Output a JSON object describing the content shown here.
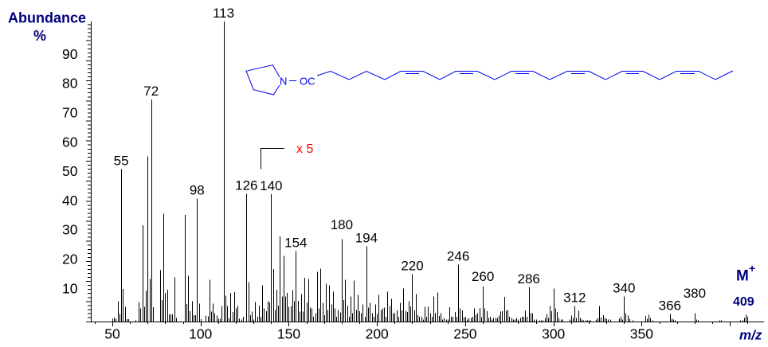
{
  "axis_titles": {
    "y_line1": "Abundance",
    "y_line2": "%",
    "x": "m/z"
  },
  "molecular_ion": {
    "label": "M",
    "charge": "+",
    "mz": "409"
  },
  "scale_annotation": {
    "text": "x 5",
    "starts_at_mz": 134,
    "factor": 5
  },
  "structure": {
    "ring_atom": "N",
    "linker_group": "OC",
    "description": "pyrrolidide of a C24 fatty acid with six cis double bonds",
    "double_bonds": 6
  },
  "colors": {
    "axis_title": "#000080",
    "peaks": "#000000",
    "structure": "#0000ee",
    "scale_annotation": "#ff0000",
    "background": "#ffffff"
  },
  "chart_data": {
    "type": "bar",
    "title": "",
    "xlabel": "m/z",
    "ylabel": "Abundance %",
    "xlim": [
      40,
      415
    ],
    "ylim": [
      0,
      100
    ],
    "xticks": [
      50,
      100,
      150,
      200,
      250,
      300,
      350
    ],
    "x_minor_tick_step": 10,
    "yticks": [
      10,
      20,
      30,
      40,
      50,
      60,
      70,
      80,
      90
    ],
    "grid": false,
    "legend": null,
    "magnification_note": "peaks above m/z ~134 shown at x5",
    "peaks": [
      [
        50,
        0.8
      ],
      [
        51,
        1.2
      ],
      [
        52,
        0.8
      ],
      [
        53,
        6.7
      ],
      [
        54,
        2.4
      ],
      [
        55,
        50.7
      ],
      [
        56,
        10.8
      ],
      [
        57,
        4.8
      ],
      [
        58,
        0.6
      ],
      [
        59,
        0.6
      ],
      [
        63,
        0.3
      ],
      [
        65,
        6.4
      ],
      [
        66,
        4.3
      ],
      [
        67,
        32.0
      ],
      [
        68,
        4.8
      ],
      [
        69,
        10.1
      ],
      [
        70,
        55.0
      ],
      [
        71,
        14.1
      ],
      [
        72,
        74.0
      ],
      [
        73,
        4.6
      ],
      [
        77,
        17.0
      ],
      [
        78,
        7.0
      ],
      [
        79,
        35.8
      ],
      [
        80,
        9.4
      ],
      [
        81,
        10.5
      ],
      [
        82,
        2.2
      ],
      [
        83,
        2.2
      ],
      [
        84,
        2.2
      ],
      [
        85,
        14.6
      ],
      [
        86,
        1.0
      ],
      [
        91,
        35.4
      ],
      [
        92,
        5.7
      ],
      [
        93,
        15.2
      ],
      [
        94,
        3.3
      ],
      [
        95,
        6.7
      ],
      [
        96,
        2.0
      ],
      [
        97,
        2.0
      ],
      [
        98,
        40.9
      ],
      [
        99,
        5.9
      ],
      [
        100,
        0.6
      ],
      [
        103,
        1.8
      ],
      [
        104,
        1.6
      ],
      [
        105,
        13.8
      ],
      [
        106,
        3.2
      ],
      [
        107,
        5.9
      ],
      [
        108,
        2.6
      ],
      [
        109,
        1.8
      ],
      [
        110,
        0.8
      ],
      [
        111,
        0.8
      ],
      [
        112,
        5.0
      ],
      [
        113,
        100
      ],
      [
        114,
        8.5
      ],
      [
        115,
        5.0
      ],
      [
        116,
        1.0
      ],
      [
        117,
        9.4
      ],
      [
        118,
        3.0
      ],
      [
        119,
        9.7
      ],
      [
        120,
        4.3
      ],
      [
        121,
        5.0
      ],
      [
        122,
        0.8
      ],
      [
        123,
        0.5
      ],
      [
        124,
        1.5
      ],
      [
        126,
        42.5
      ],
      [
        127,
        13.0
      ],
      [
        128,
        2.0
      ],
      [
        129,
        3.2
      ],
      [
        130,
        0.5
      ],
      [
        131,
        6.4
      ],
      [
        132,
        1.5
      ],
      [
        133,
        5.2
      ],
      [
        134,
        1.5
      ],
      [
        135,
        12.0
      ],
      [
        136,
        4.3
      ],
      [
        137,
        3.3
      ],
      [
        138,
        6.6
      ],
      [
        139,
        6.3
      ],
      [
        140,
        42.3
      ],
      [
        141,
        17.4
      ],
      [
        142,
        3.7
      ],
      [
        143,
        10.5
      ],
      [
        144,
        5.2
      ],
      [
        145,
        28.3
      ],
      [
        146,
        8.2
      ],
      [
        147,
        21.8
      ],
      [
        148,
        8.3
      ],
      [
        149,
        9.4
      ],
      [
        150,
        4.8
      ],
      [
        151,
        5.0
      ],
      [
        152,
        10.3
      ],
      [
        153,
        6.7
      ],
      [
        154,
        23.4
      ],
      [
        155,
        6.8
      ],
      [
        156,
        3.2
      ],
      [
        157,
        9.0
      ],
      [
        158,
        3.2
      ],
      [
        159,
        14.5
      ],
      [
        160,
        6.1
      ],
      [
        161,
        14.1
      ],
      [
        162,
        4.5
      ],
      [
        163,
        4.2
      ],
      [
        164,
        1.5
      ],
      [
        165,
        2.6
      ],
      [
        166,
        16.5
      ],
      [
        167,
        4.3
      ],
      [
        168,
        17.5
      ],
      [
        169,
        6.1
      ],
      [
        170,
        2.0
      ],
      [
        171,
        12.5
      ],
      [
        172,
        3.7
      ],
      [
        173,
        11.9
      ],
      [
        174,
        5.6
      ],
      [
        175,
        9.8
      ],
      [
        176,
        4.3
      ],
      [
        177,
        1.5
      ],
      [
        178,
        3.7
      ],
      [
        179,
        2.9
      ],
      [
        180,
        27.4
      ],
      [
        181,
        7.0
      ],
      [
        182,
        13.8
      ],
      [
        183,
        5.2
      ],
      [
        184,
        1.5
      ],
      [
        185,
        8.2
      ],
      [
        186,
        2.7
      ],
      [
        187,
        13.6
      ],
      [
        188,
        3.7
      ],
      [
        189,
        8.8
      ],
      [
        190,
        3.3
      ],
      [
        191,
        2.6
      ],
      [
        192,
        5.6
      ],
      [
        193,
        1.5
      ],
      [
        194,
        25.0
      ],
      [
        195,
        4.5
      ],
      [
        196,
        6.1
      ],
      [
        197,
        2.7
      ],
      [
        198,
        1.5
      ],
      [
        199,
        5.6
      ],
      [
        200,
        2.4
      ],
      [
        201,
        8.8
      ],
      [
        202,
        3.7
      ],
      [
        203,
        4.2
      ],
      [
        204,
        4.5
      ],
      [
        205,
        1.5
      ],
      [
        206,
        9.8
      ],
      [
        207,
        5.0
      ],
      [
        208,
        7.4
      ],
      [
        209,
        2.7
      ],
      [
        210,
        2.7
      ],
      [
        211,
        3.6
      ],
      [
        212,
        1.5
      ],
      [
        213,
        6.1
      ],
      [
        214,
        3.6
      ],
      [
        215,
        10.9
      ],
      [
        216,
        3.5
      ],
      [
        217,
        3.0
      ],
      [
        218,
        6.6
      ],
      [
        219,
        4.9
      ],
      [
        220,
        15.7
      ],
      [
        221,
        3.6
      ],
      [
        222,
        9.0
      ],
      [
        223,
        2.0
      ],
      [
        224,
        1.5
      ],
      [
        225,
        1.5
      ],
      [
        226,
        0.5
      ],
      [
        227,
        4.8
      ],
      [
        228,
        1.5
      ],
      [
        229,
        4.8
      ],
      [
        230,
        2.6
      ],
      [
        231,
        1.5
      ],
      [
        232,
        8.2
      ],
      [
        233,
        2.6
      ],
      [
        234,
        9.5
      ],
      [
        235,
        1.7
      ],
      [
        236,
        2.6
      ],
      [
        237,
        0.5
      ],
      [
        238,
        1.0
      ],
      [
        239,
        0.5
      ],
      [
        240,
        0.5
      ],
      [
        241,
        4.7
      ],
      [
        242,
        1.5
      ],
      [
        243,
        1.5
      ],
      [
        244,
        3.1
      ],
      [
        245,
        1.5
      ],
      [
        246,
        18.8
      ],
      [
        247,
        4.3
      ],
      [
        248,
        3.6
      ],
      [
        249,
        1.2
      ],
      [
        250,
        1.5
      ],
      [
        251,
        0.5
      ],
      [
        252,
        1.0
      ],
      [
        253,
        1.0
      ],
      [
        254,
        1.5
      ],
      [
        255,
        4.3
      ],
      [
        256,
        2.1
      ],
      [
        257,
        2.7
      ],
      [
        258,
        4.4
      ],
      [
        259,
        1.3
      ],
      [
        260,
        11.6
      ],
      [
        261,
        4.2
      ],
      [
        262,
        3.3
      ],
      [
        263,
        1.0
      ],
      [
        264,
        1.5
      ],
      [
        265,
        0.5
      ],
      [
        266,
        1.0
      ],
      [
        267,
        1.0
      ],
      [
        268,
        1.0
      ],
      [
        269,
        1.9
      ],
      [
        270,
        3.2
      ],
      [
        271,
        3.3
      ],
      [
        272,
        8.1
      ],
      [
        273,
        3.5
      ],
      [
        274,
        3.7
      ],
      [
        275,
        1.5
      ],
      [
        276,
        1.0
      ],
      [
        277,
        0.5
      ],
      [
        278,
        0.5
      ],
      [
        279,
        1.0
      ],
      [
        280,
        0.5
      ],
      [
        281,
        1.0
      ],
      [
        282,
        1.5
      ],
      [
        283,
        1.5
      ],
      [
        284,
        3.5
      ],
      [
        285,
        1.5
      ],
      [
        286,
        11.3
      ],
      [
        287,
        2.7
      ],
      [
        288,
        2.7
      ],
      [
        289,
        0.5
      ],
      [
        290,
        0.5
      ],
      [
        292,
        0.3
      ],
      [
        293,
        0.3
      ],
      [
        294,
        0.3
      ],
      [
        295,
        1.0
      ],
      [
        296,
        2.4
      ],
      [
        297,
        1.0
      ],
      [
        298,
        5.0
      ],
      [
        299,
        3.3
      ],
      [
        300,
        10.9
      ],
      [
        301,
        4.2
      ],
      [
        302,
        3.0
      ],
      [
        303,
        1.0
      ],
      [
        304,
        0.5
      ],
      [
        305,
        0.5
      ],
      [
        309,
        0.5
      ],
      [
        310,
        1.9
      ],
      [
        311,
        1.0
      ],
      [
        312,
        5.0
      ],
      [
        313,
        1.0
      ],
      [
        314,
        3.5
      ],
      [
        315,
        1.0
      ],
      [
        316,
        0.5
      ],
      [
        317,
        0.3
      ],
      [
        318,
        0.3
      ],
      [
        319,
        0.3
      ],
      [
        320,
        0.3
      ],
      [
        321,
        0.3
      ],
      [
        324,
        0.5
      ],
      [
        325,
        1.0
      ],
      [
        326,
        5.0
      ],
      [
        327,
        1.2
      ],
      [
        328,
        2.0
      ],
      [
        329,
        1.0
      ],
      [
        330,
        0.8
      ],
      [
        331,
        0.5
      ],
      [
        332,
        0.5
      ],
      [
        337,
        0.8
      ],
      [
        338,
        1.5
      ],
      [
        339,
        0.5
      ],
      [
        340,
        8.2
      ],
      [
        341,
        2.7
      ],
      [
        342,
        1.9
      ],
      [
        343,
        0.8
      ],
      [
        345,
        0.3
      ],
      [
        352,
        1.7
      ],
      [
        353,
        0.8
      ],
      [
        354,
        2.1
      ],
      [
        355,
        1.0
      ],
      [
        356,
        0.3
      ],
      [
        366,
        2.4
      ],
      [
        367,
        0.8
      ],
      [
        368,
        0.5
      ],
      [
        369,
        0.3
      ],
      [
        380,
        2.6
      ],
      [
        381,
        0.5
      ],
      [
        382,
        0.3
      ],
      [
        394,
        0.3
      ],
      [
        395,
        0.3
      ],
      [
        406,
        0.3
      ],
      [
        407,
        0.3
      ],
      [
        408,
        1.0
      ],
      [
        409,
        2.1
      ],
      [
        410,
        1.5
      ]
    ],
    "annotations": [
      {
        "text": "55",
        "mz": 55
      },
      {
        "text": "72",
        "mz": 72
      },
      {
        "text": "98",
        "mz": 98
      },
      {
        "text": "113",
        "mz": 113
      },
      {
        "text": "126",
        "mz": 126
      },
      {
        "text": "140",
        "mz": 140
      },
      {
        "text": "154",
        "mz": 154
      },
      {
        "text": "180",
        "mz": 180,
        "dy": -7.5
      },
      {
        "text": "194",
        "mz": 194
      },
      {
        "text": "220",
        "mz": 220
      },
      {
        "text": "246",
        "mz": 246
      },
      {
        "text": "260",
        "mz": 260,
        "dy": -2
      },
      {
        "text": "286",
        "mz": 286
      },
      {
        "text": "312",
        "mz": 312
      },
      {
        "text": "340",
        "mz": 340
      },
      {
        "text": "366",
        "mz": 366
      },
      {
        "text": "380",
        "mz": 380,
        "dy": -14.5
      }
    ]
  }
}
